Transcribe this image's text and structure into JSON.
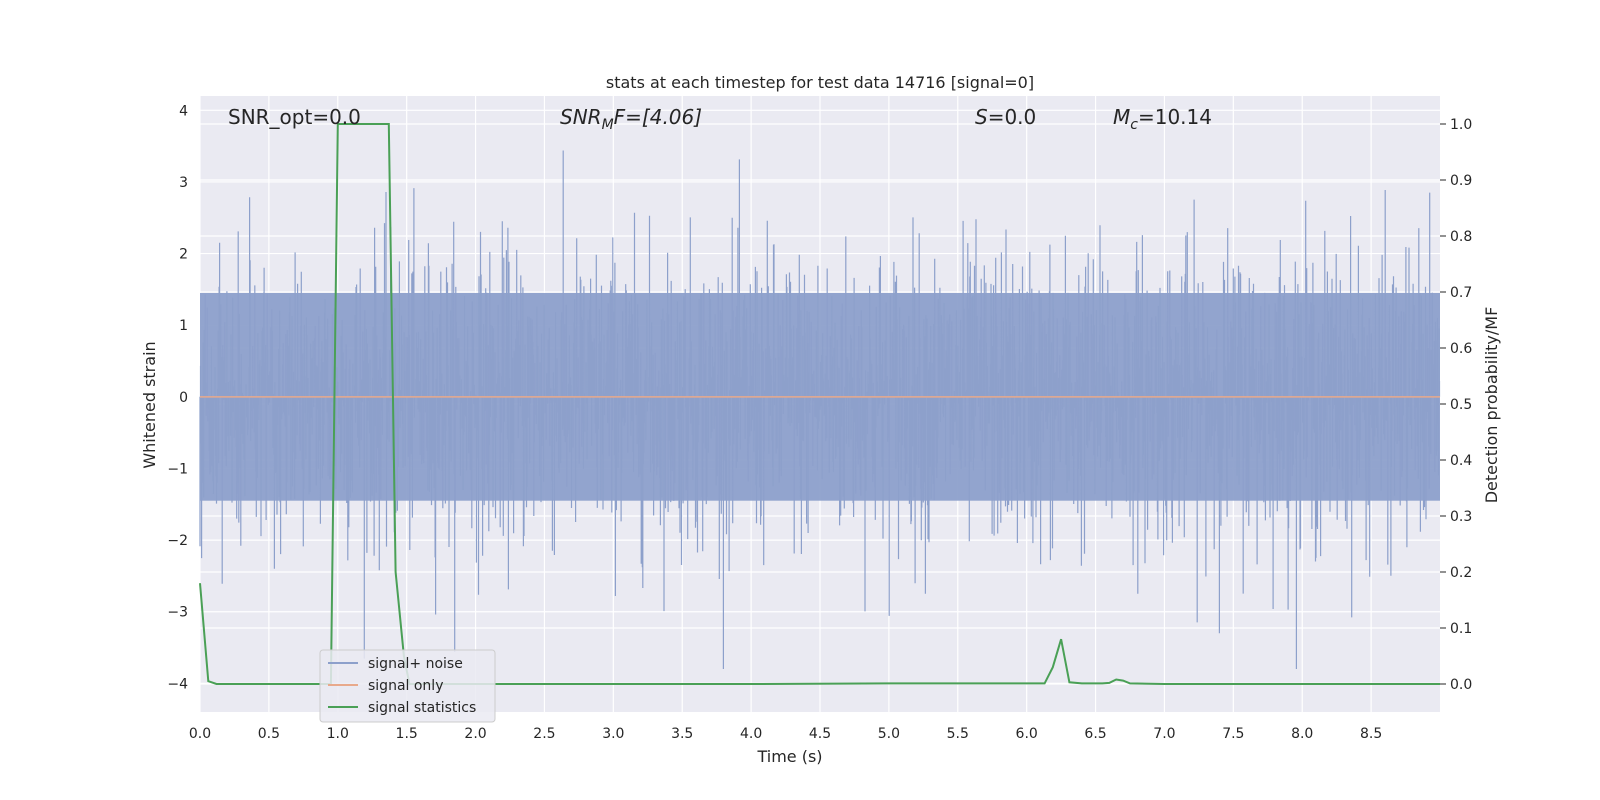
{
  "chart_data": {
    "type": "line",
    "title": "stats at each timestep for test data 14716 [signal=0]",
    "xlabel": "Time (s)",
    "ylabel_left": "Whitened strain",
    "ylabel_right": "Detection probability/MF",
    "xlim": [
      0,
      9
    ],
    "ylim_left": [
      -4.4,
      4.2
    ],
    "ylim_right": [
      -0.05,
      1.05
    ],
    "x_ticks": [
      0.0,
      0.5,
      1.0,
      1.5,
      2.0,
      2.5,
      3.0,
      3.5,
      4.0,
      4.5,
      5.0,
      5.5,
      6.0,
      6.5,
      7.0,
      7.5,
      8.0,
      8.5
    ],
    "x_tick_labels": [
      "0.0",
      "0.5",
      "1.0",
      "1.5",
      "2.0",
      "2.5",
      "3.0",
      "3.5",
      "4.0",
      "4.5",
      "5.0",
      "5.5",
      "6.0",
      "6.5",
      "7.0",
      "7.5",
      "8.0",
      "8.5"
    ],
    "y_left_ticks": [
      -4,
      -3,
      -2,
      -1,
      0,
      1,
      2,
      3,
      4
    ],
    "y_left_tick_labels": [
      "−4",
      "−3",
      "−2",
      "−1",
      "0",
      "1",
      "2",
      "3",
      "4"
    ],
    "y_right_ticks": [
      0.0,
      0.1,
      0.2,
      0.3,
      0.4,
      0.5,
      0.6,
      0.7,
      0.8,
      0.9,
      1.0
    ],
    "y_right_tick_labels": [
      "0.0",
      "0.1",
      "0.2",
      "0.3",
      "0.4",
      "0.5",
      "0.6",
      "0.7",
      "0.8",
      "0.9",
      "1.0"
    ],
    "grid": true,
    "legend": {
      "placement": "lower-left",
      "entries": [
        "signal+ noise",
        "signal only",
        "signal statistics"
      ]
    },
    "annotations": {
      "snr_opt": "SNR_opt=0.0",
      "snr_mf_main": "SNR",
      "snr_mf_sub": "M",
      "snr_mf_rest": "F=[4.06]",
      "s_main": "S",
      "s_rest": "=0.0",
      "mc_main": "M",
      "mc_sub": "c",
      "mc_rest": "=10.14"
    },
    "series": [
      {
        "label": "signal+ noise",
        "axis": "left",
        "color": "#8da0cb",
        "envelope_abs": 1.45,
        "peak_range": [
          -3.8,
          3.8
        ]
      },
      {
        "label": "signal only",
        "axis": "left",
        "color": "#e8a98b",
        "constant_value": 0.0
      },
      {
        "label": "signal statistics",
        "axis": "right",
        "color": "#4aa056",
        "x": [
          0.0,
          0.06,
          0.12,
          0.9,
          0.93,
          0.95,
          1.0,
          1.37,
          1.42,
          1.48,
          1.52,
          1.6,
          2.0,
          4.0,
          5.0,
          6.0,
          6.13,
          6.19,
          6.25,
          6.31,
          6.4,
          6.55,
          6.6,
          6.65,
          6.7,
          6.75,
          7.0,
          8.0,
          9.0
        ],
        "y": [
          0.18,
          0.005,
          0.0,
          0.0,
          0.0,
          0.0,
          1.0,
          1.0,
          0.2,
          0.05,
          0.0,
          0.0,
          0.0,
          0.0,
          0.001,
          0.001,
          0.001,
          0.03,
          0.08,
          0.003,
          0.001,
          0.001,
          0.002,
          0.008,
          0.006,
          0.001,
          0.0,
          0.0,
          0.0
        ]
      }
    ]
  }
}
